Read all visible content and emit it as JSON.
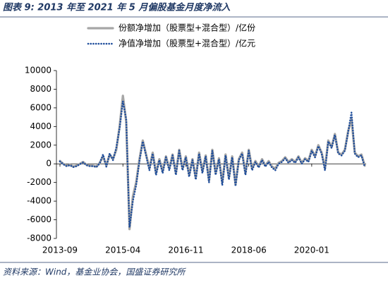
{
  "chart_data": {
    "type": "line",
    "title": "图表 9: 2013 年至 2021 年 5 月偏股基金月度净流入",
    "source": "资料来源：Wind，基金业协会，国盛证券研究所",
    "categories": [
      "2013-09",
      null,
      null,
      null,
      null,
      null,
      null,
      null,
      null,
      null,
      null,
      null,
      null,
      null,
      null,
      null,
      null,
      null,
      null,
      "2015-04",
      null,
      null,
      null,
      null,
      null,
      null,
      null,
      null,
      null,
      null,
      null,
      null,
      null,
      null,
      null,
      null,
      null,
      null,
      "2016-11",
      null,
      null,
      null,
      null,
      null,
      null,
      null,
      null,
      null,
      null,
      null,
      null,
      null,
      null,
      null,
      null,
      null,
      null,
      "2018-06",
      null,
      null,
      null,
      null,
      null,
      null,
      null,
      null,
      null,
      null,
      null,
      null,
      null,
      null,
      null,
      null,
      null,
      null,
      "2020-01",
      null,
      null,
      null,
      null,
      null,
      null,
      null,
      null,
      null,
      null,
      null,
      null,
      null,
      null,
      null,
      null
    ],
    "series": [
      {
        "name": "份额净增加（股票型+混合型）/亿份",
        "color": "#a6a6a6",
        "style": "solid",
        "values": [
          300,
          0,
          -200,
          -100,
          -300,
          -200,
          0,
          200,
          -100,
          -200,
          -200,
          -300,
          100,
          800,
          -200,
          1000,
          500,
          1500,
          4000,
          7300,
          4500,
          -7000,
          -3500,
          -2000,
          500,
          2500,
          1000,
          -500,
          1200,
          -1000,
          500,
          -800,
          800,
          -500,
          1000,
          -1000,
          1500,
          -500,
          800,
          -1200,
          500,
          -1500,
          1200,
          -800,
          900,
          -1800,
          1500,
          -1000,
          600,
          -2000,
          1000,
          -1500,
          800,
          -2200,
          500,
          1200,
          -1000,
          1500,
          -500,
          300,
          -300,
          500,
          -200,
          300,
          -300,
          -500,
          100,
          300,
          700,
          200,
          500,
          200,
          800,
          100,
          600,
          300,
          1500,
          800,
          2000,
          1200,
          -500,
          2500,
          1800,
          3200,
          1200,
          1000,
          1500,
          3500,
          4800,
          1200,
          800,
          1000,
          -200
        ]
      },
      {
        "name": "净值净增加（股票型+混合型）/亿元",
        "color": "#1f4e9c",
        "style": "dotted",
        "values": [
          250,
          -50,
          -250,
          -150,
          -350,
          -250,
          -50,
          150,
          -150,
          -250,
          -250,
          -350,
          50,
          1000,
          -300,
          1100,
          400,
          1700,
          3800,
          6700,
          4800,
          -6800,
          -4000,
          -2300,
          300,
          2400,
          900,
          -700,
          1100,
          -1200,
          400,
          -1000,
          700,
          -700,
          900,
          -1200,
          1400,
          -700,
          700,
          -1400,
          400,
          -1700,
          1100,
          -1000,
          800,
          -2000,
          1400,
          -1200,
          500,
          -2300,
          900,
          -1700,
          700,
          -2400,
          400,
          1100,
          -1200,
          1400,
          -700,
          200,
          -400,
          400,
          -300,
          200,
          -400,
          -700,
          0,
          200,
          600,
          100,
          400,
          100,
          700,
          0,
          500,
          200,
          1400,
          700,
          1900,
          1100,
          -700,
          2400,
          1700,
          3100,
          1100,
          900,
          1400,
          3400,
          5500,
          1100,
          700,
          900,
          -300
        ]
      }
    ],
    "ylim": [
      -8000,
      10000
    ],
    "yticks": [
      -8000,
      -6000,
      -4000,
      -2000,
      0,
      2000,
      4000,
      6000,
      8000,
      10000
    ]
  }
}
